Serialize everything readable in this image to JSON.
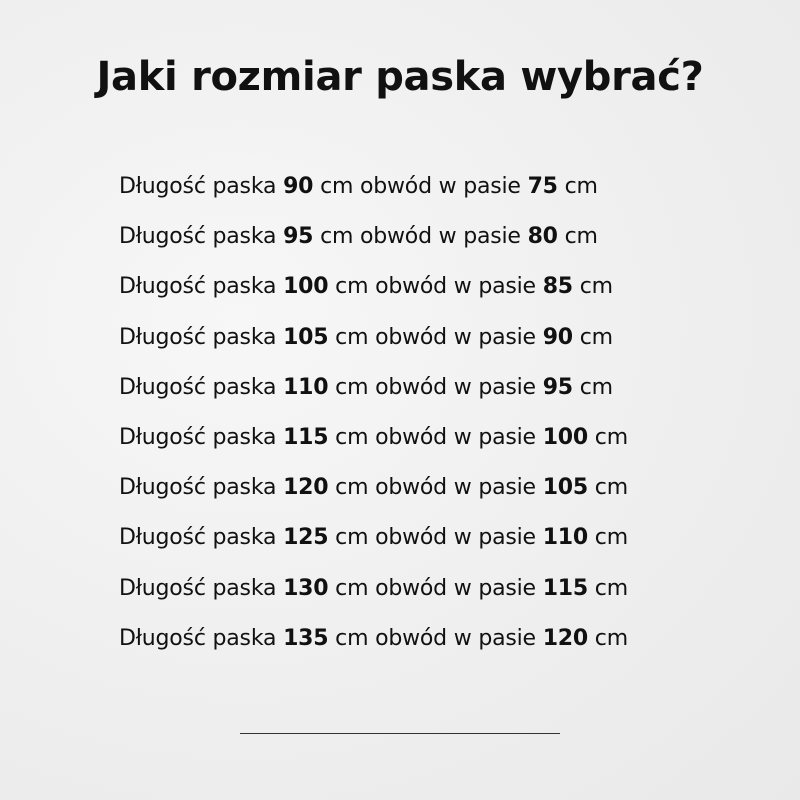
{
  "title": "Jaki rozmiar paska wybrać?",
  "labels": {
    "prefix": "Długość paska ",
    "middle": " cm obwód w pasie ",
    "suffix": " cm"
  },
  "rows": [
    {
      "belt": "90",
      "waist": "75"
    },
    {
      "belt": "95",
      "waist": "80"
    },
    {
      "belt": "100",
      "waist": "85"
    },
    {
      "belt": "105",
      "waist": "90"
    },
    {
      "belt": "110",
      "waist": "95"
    },
    {
      "belt": "115",
      "waist": "100"
    },
    {
      "belt": "120",
      "waist": "105"
    },
    {
      "belt": "125",
      "waist": "110"
    },
    {
      "belt": "130",
      "waist": "115"
    },
    {
      "belt": "135",
      "waist": "120"
    }
  ]
}
